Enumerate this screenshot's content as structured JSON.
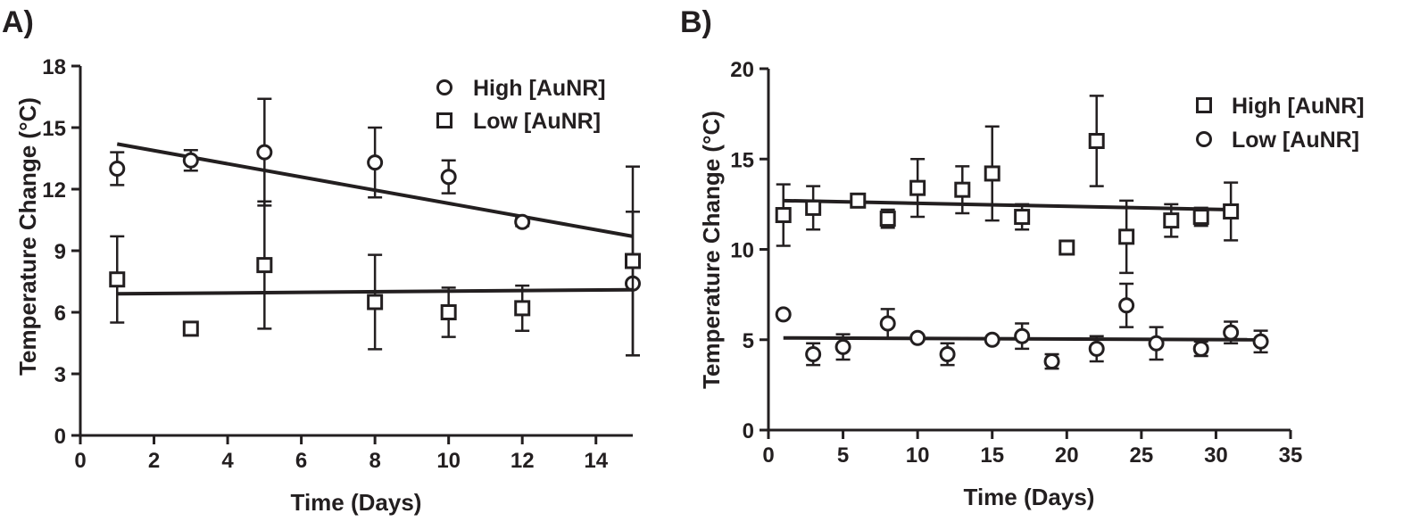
{
  "colors": {
    "ink": "#231f20",
    "background": "#ffffff"
  },
  "chart_data": [
    {
      "type": "scatter",
      "panel_label": "A)",
      "xlabel": "Time (Days)",
      "ylabel": "Temperature Change (°C)",
      "xlim": [
        0,
        15
      ],
      "ylim": [
        0,
        18
      ],
      "xticks": [
        0,
        2,
        4,
        6,
        8,
        10,
        12,
        14
      ],
      "yticks": [
        0,
        3,
        6,
        9,
        12,
        15,
        18
      ],
      "legend_position": "top-right",
      "series": [
        {
          "name": "High [AuNR]",
          "marker": "circle",
          "x": [
            1,
            3,
            5,
            8,
            10,
            12,
            15
          ],
          "y": [
            13.0,
            13.4,
            13.8,
            13.3,
            12.6,
            10.4,
            7.4
          ],
          "err": [
            0.8,
            0.5,
            2.6,
            1.7,
            0.8,
            0.2,
            3.5
          ],
          "fit": {
            "x": [
              1,
              15
            ],
            "y": [
              14.2,
              9.7
            ]
          }
        },
        {
          "name": "Low [AuNR]",
          "marker": "square",
          "x": [
            1,
            3,
            5,
            8,
            10,
            12,
            15
          ],
          "y": [
            7.6,
            5.2,
            8.3,
            6.5,
            6.0,
            6.2,
            8.5
          ],
          "err": [
            2.1,
            0.2,
            3.1,
            2.3,
            1.2,
            1.1,
            4.6
          ],
          "fit": {
            "x": [
              1,
              15
            ],
            "y": [
              6.9,
              7.1
            ]
          }
        }
      ]
    },
    {
      "type": "scatter",
      "panel_label": "B)",
      "xlabel": "Time (Days)",
      "ylabel": "Temperature Change (°C)",
      "xlim": [
        0,
        35
      ],
      "ylim": [
        0,
        20
      ],
      "xticks": [
        0,
        5,
        10,
        15,
        20,
        25,
        30,
        35
      ],
      "yticks": [
        0,
        5,
        10,
        15,
        20
      ],
      "legend_position": "top-right",
      "series": [
        {
          "name": "High [AuNR]",
          "marker": "square",
          "x": [
            1,
            3,
            6,
            8,
            10,
            13,
            15,
            17,
            20,
            22,
            24,
            27,
            29,
            31
          ],
          "y": [
            11.9,
            12.3,
            12.7,
            11.7,
            13.4,
            13.3,
            14.2,
            11.8,
            10.1,
            16.0,
            10.7,
            11.6,
            11.8,
            12.1
          ],
          "err": [
            1.7,
            1.2,
            0.2,
            0.5,
            1.6,
            1.3,
            2.6,
            0.7,
            0.2,
            2.5,
            2.0,
            0.9,
            0.5,
            1.6
          ],
          "fit": {
            "x": [
              1,
              31
            ],
            "y": [
              12.7,
              12.2
            ]
          }
        },
        {
          "name": "Low [AuNR]",
          "marker": "circle",
          "x": [
            1,
            3,
            5,
            8,
            10,
            12,
            15,
            17,
            19,
            22,
            24,
            26,
            29,
            31,
            33
          ],
          "y": [
            6.4,
            4.2,
            4.6,
            5.9,
            5.1,
            4.2,
            5.0,
            5.2,
            3.8,
            4.5,
            6.9,
            4.8,
            4.5,
            5.4,
            4.9
          ],
          "err": [
            0.1,
            0.6,
            0.7,
            0.8,
            0.1,
            0.6,
            0.1,
            0.7,
            0.4,
            0.7,
            1.2,
            0.9,
            0.4,
            0.6,
            0.6
          ],
          "fit": {
            "x": [
              1,
              33
            ],
            "y": [
              5.1,
              5.0
            ]
          }
        }
      ]
    }
  ]
}
